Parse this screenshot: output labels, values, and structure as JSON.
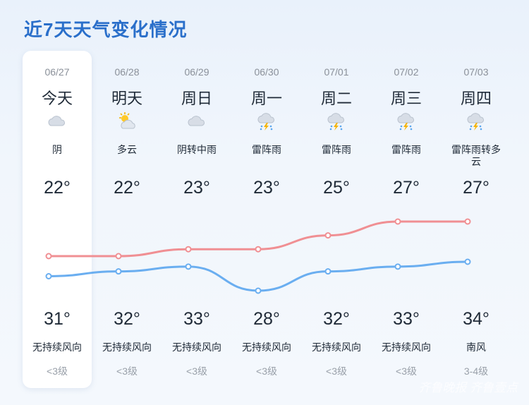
{
  "title": "近7天天气变化情况",
  "colors": {
    "high_line": "#f08f93",
    "low_line": "#6aaef0",
    "title": "#2a6fca"
  },
  "days": [
    {
      "date": "06/27",
      "day": "今天",
      "icon": "overcast-icon",
      "condition": "阴",
      "high": "22°",
      "high_value": 22,
      "low": "31°",
      "low_value": 31,
      "wind": "无持续风向",
      "level": "<3级"
    },
    {
      "date": "06/28",
      "day": "明天",
      "icon": "partly-cloudy-icon",
      "condition": "多云",
      "high": "22°",
      "high_value": 22,
      "low": "32°",
      "low_value": 32,
      "wind": "无持续风向",
      "level": "<3级"
    },
    {
      "date": "06/29",
      "day": "周日",
      "icon": "overcast-icon",
      "condition": "阴转中雨",
      "high": "23°",
      "high_value": 23,
      "low": "33°",
      "low_value": 33,
      "wind": "无持续风向",
      "level": "<3级"
    },
    {
      "date": "06/30",
      "day": "周一",
      "icon": "thundershower-icon",
      "condition": "雷阵雨",
      "high": "23°",
      "high_value": 23,
      "low": "28°",
      "low_value": 28,
      "wind": "无持续风向",
      "level": "<3级"
    },
    {
      "date": "07/01",
      "day": "周二",
      "icon": "thundershower-icon",
      "condition": "雷阵雨",
      "high": "25°",
      "high_value": 25,
      "low": "32°",
      "low_value": 32,
      "wind": "无持续风向",
      "level": "<3级"
    },
    {
      "date": "07/02",
      "day": "周三",
      "icon": "thundershower-icon",
      "condition": "雷阵雨",
      "high": "27°",
      "high_value": 27,
      "low": "33°",
      "low_value": 33,
      "wind": "无持续风向",
      "level": "<3级"
    },
    {
      "date": "07/03",
      "day": "周四",
      "icon": "thundershower-icon",
      "condition": "雷阵雨转多云",
      "high": "27°",
      "high_value": 27,
      "low": "34°",
      "low_value": 34,
      "wind": "南风",
      "level": "3-4级"
    }
  ],
  "watermark": "齐鲁晚报 齐鲁壹点"
}
